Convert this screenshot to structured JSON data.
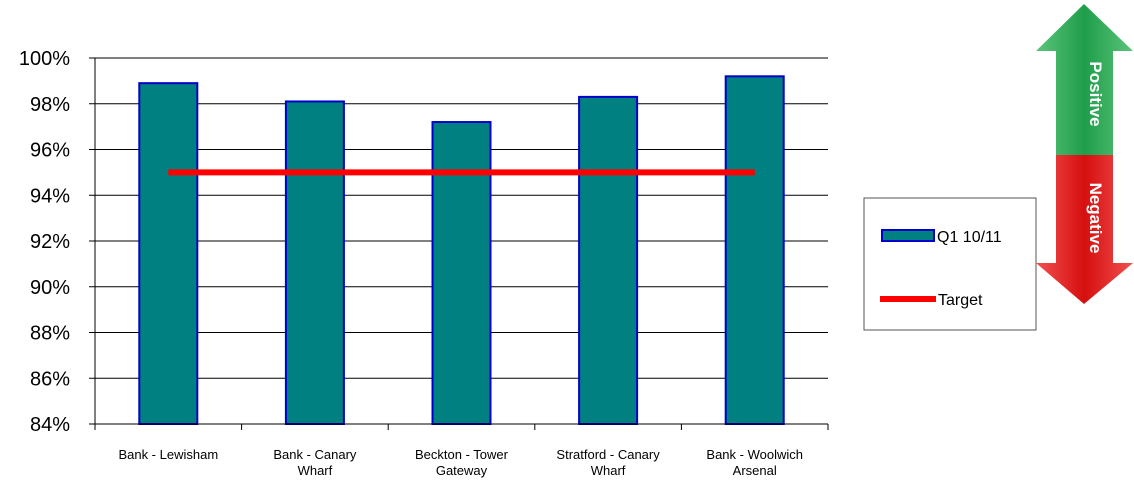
{
  "chart_data": {
    "type": "bar",
    "title": "",
    "xlabel": "",
    "ylabel": "",
    "categories": [
      [
        "Bank - Lewisham"
      ],
      [
        "Bank - Canary",
        "Wharf"
      ],
      [
        "Beckton - Tower",
        "Gateway"
      ],
      [
        "Stratford - Canary",
        "Wharf"
      ],
      [
        "Bank - Woolwich",
        "Arsenal"
      ]
    ],
    "series": [
      {
        "name": "Q1 10/11",
        "values": [
          98.9,
          98.1,
          97.2,
          98.3,
          99.2
        ]
      }
    ],
    "target": {
      "name": "Target",
      "value": 95
    },
    "ylim": [
      84,
      100
    ],
    "yticks": [
      "84%",
      "86%",
      "88%",
      "90%",
      "92%",
      "94%",
      "96%",
      "98%",
      "100%"
    ],
    "grid": true,
    "legend_position": "right",
    "colors": {
      "bar_fill": "#008080",
      "bar_stroke": "#0000cc",
      "target_line": "#ff0000",
      "positive": "#20a050",
      "negative": "#e01010"
    }
  },
  "indicator": {
    "positive_label": "Positive",
    "negative_label": "Negative"
  }
}
